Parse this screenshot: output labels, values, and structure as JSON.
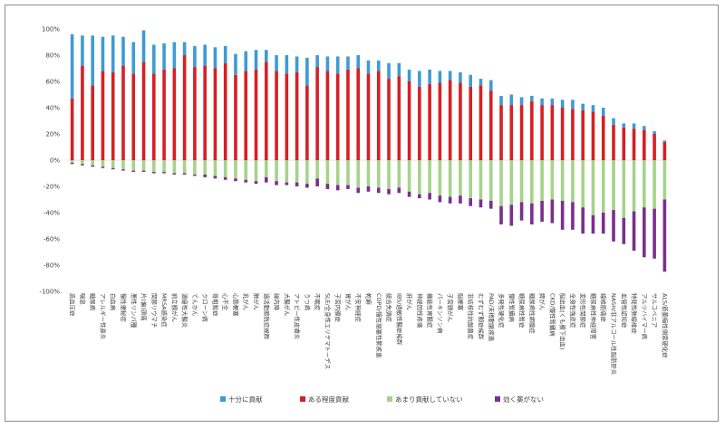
{
  "chart_data": {
    "type": "bar",
    "stacked": true,
    "ylim": [
      -100,
      100
    ],
    "ytick_values": [
      100,
      80,
      60,
      40,
      20,
      0,
      -20,
      -40,
      -60,
      -80,
      -100
    ],
    "ytick_labels": [
      "100%",
      "80%",
      "60%",
      "40%",
      "20%",
      "0%",
      "-20%",
      "-40%",
      "-60%",
      "-80%",
      "-100%"
    ],
    "grid": false,
    "legend_position": "bottom",
    "colors": {
      "十分に貢献": "#3d9bd5",
      "ある程度貢献": "#d62024",
      "あまり貢献していない": "#a5d38b",
      "効く薬がない": "#7b2e8e"
    },
    "categories": [
      "高血圧症",
      "喘息",
      "糖尿病",
      "アレルギー性鼻炎",
      "白血病",
      "慢性便秘症",
      "悪性リンパ腫",
      "片(偏)頭痛",
      "関節リウマチ",
      "MRSA感染症",
      "前立腺がん",
      "潰瘍性大腸炎",
      "てんかん",
      "クローン病",
      "骨粗鬆症",
      "心不全",
      "心筋梗塞",
      "乳がん",
      "肺がん",
      "過活動膀胱症候群",
      "緑内障",
      "大腸がん",
      "アトピー性皮膚炎",
      "うつ病",
      "不眠症",
      "SLE/全身性エリテマトーデス",
      "子宮内膜症",
      "胃がん",
      "不安神経症",
      "乾癬",
      "COPD/慢性閉塞性肺疾患",
      "統合失調症",
      "IBS/過敏性腸症候群",
      "肝がん",
      "神経因性疼痛",
      "機能性胃腸症",
      "パーキンソン病",
      "子宮頸がん",
      "脳梗塞",
      "非結核性抗酸菌症",
      "むずむず脚症候群",
      "PAD/末梢動脈疾患",
      "多発性硬化症",
      "慢性腎臓病",
      "糖尿病性腎症",
      "糖尿病性網膜症",
      "膵がん",
      "CKD/慢性腎臓病",
      "脳出血(くも膜下出血)",
      "全身性強皮症",
      "変形性関節症",
      "糖尿病性神経障害",
      "線維筋痛症",
      "NASH/非アルコール性脂肪肝炎",
      "血管性認知症",
      "特発性肺線維症",
      "アルツハイマー病",
      "サルコペニア",
      "ALS/筋萎縮性側索硬化症"
    ],
    "series": [
      {
        "name": "十分に貢献",
        "values": [
          49,
          23,
          38,
          26,
          28,
          22,
          24,
          24,
          22,
          20,
          20,
          10,
          16,
          16,
          16,
          13,
          16,
          15,
          15,
          9,
          12,
          14,
          12,
          21,
          9,
          11,
          13,
          10,
          10,
          10,
          8,
          12,
          10,
          9,
          12,
          11,
          9,
          7,
          8,
          9,
          5,
          8,
          7,
          8,
          6,
          4,
          5,
          5,
          6,
          7,
          5,
          5,
          6,
          5,
          3,
          4,
          3,
          2,
          1
        ]
      },
      {
        "name": "ある程度貢献",
        "values": [
          47,
          72,
          57,
          68,
          67,
          72,
          66,
          75,
          66,
          69,
          70,
          80,
          71,
          72,
          70,
          74,
          65,
          68,
          69,
          75,
          68,
          66,
          67,
          57,
          71,
          68,
          66,
          69,
          70,
          66,
          68,
          62,
          64,
          60,
          56,
          58,
          59,
          61,
          59,
          56,
          57,
          53,
          42,
          42,
          42,
          45,
          42,
          42,
          40,
          39,
          38,
          37,
          34,
          27,
          25,
          24,
          23,
          20,
          14
        ]
      },
      {
        "name": "あまり貢献していない",
        "values": [
          -2,
          -3,
          -4,
          -5,
          -6,
          -7,
          -8,
          -8,
          -9,
          -9,
          -10,
          -10,
          -11,
          -11,
          -12,
          -13,
          -14,
          -15,
          -16,
          -13,
          -16,
          -17,
          -17,
          -18,
          -14,
          -18,
          -19,
          -19,
          -21,
          -20,
          -21,
          -22,
          -21,
          -24,
          -26,
          -25,
          -27,
          -28,
          -27,
          -29,
          -30,
          -31,
          -35,
          -34,
          -32,
          -33,
          -31,
          -30,
          -31,
          -32,
          -36,
          -42,
          -40,
          -38,
          -44,
          -39,
          -36,
          -37,
          -30
        ]
      },
      {
        "name": "効く薬がない",
        "values": [
          -1,
          -1,
          -1,
          -1,
          -1,
          -1,
          -1,
          -1,
          -1,
          -1,
          -1,
          -1,
          -1,
          -2,
          -2,
          -2,
          -2,
          -2,
          -2,
          -4,
          -3,
          -2,
          -3,
          -3,
          -6,
          -4,
          -4,
          -3,
          -4,
          -4,
          -4,
          -4,
          -4,
          -4,
          -3,
          -5,
          -5,
          -5,
          -6,
          -6,
          -6,
          -6,
          -14,
          -16,
          -14,
          -16,
          -16,
          -18,
          -22,
          -21,
          -20,
          -14,
          -16,
          -24,
          -20,
          -30,
          -38,
          -38,
          -55
        ]
      }
    ],
    "title": "",
    "xlabel": "",
    "ylabel": ""
  }
}
